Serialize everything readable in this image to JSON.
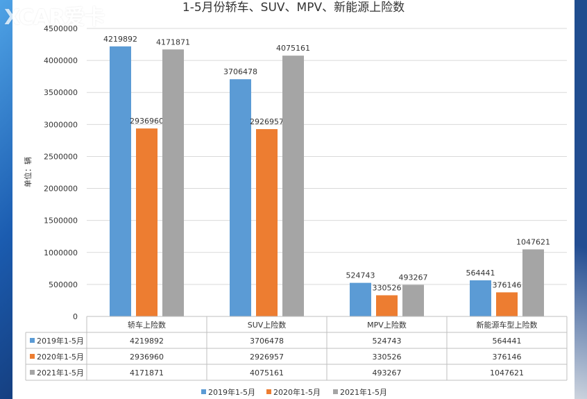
{
  "watermark": "XCAR爱卡",
  "chart_data": {
    "type": "bar",
    "title": "1-5月份轿车、SUV、MPV、新能源上险数",
    "ylabel": "单位：辆",
    "ylim": [
      0,
      4500000
    ],
    "yticks": [
      0,
      500000,
      1000000,
      1500000,
      2000000,
      2500000,
      3000000,
      3500000,
      4000000,
      4500000
    ],
    "grid": true,
    "legend_position": "bottom",
    "categories": [
      "轿车上险数",
      "SUV上险数",
      "MPV上险数",
      "新能源车型上险数"
    ],
    "series": [
      {
        "name": "2019年1-5月",
        "color": "#5b9bd5",
        "values": [
          4219892,
          3706478,
          524743,
          564441
        ]
      },
      {
        "name": "2020年1-5月",
        "color": "#ed7d31",
        "values": [
          2936960,
          2926957,
          330526,
          376146
        ]
      },
      {
        "name": "2021年1-5月",
        "color": "#a5a5a5",
        "values": [
          4171871,
          4075161,
          493267,
          1047621
        ]
      }
    ]
  }
}
